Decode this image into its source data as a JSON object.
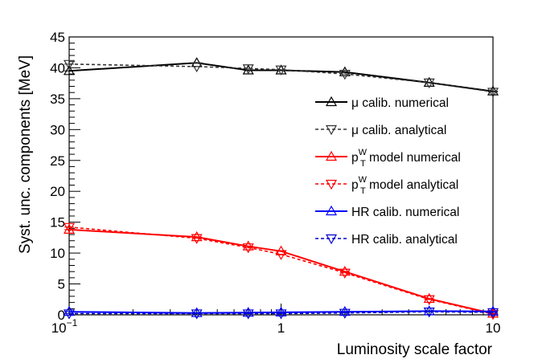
{
  "chart_data": {
    "type": "line",
    "xlabel": "Luminosity scale factor",
    "ylabel": "Syst. unc. components [MeV]",
    "xscale": "log",
    "xlim": [
      0.1,
      10
    ],
    "ylim": [
      0,
      45
    ],
    "grid": false,
    "legend_position": "right",
    "x_tick_labels": [
      {
        "value": 0.1,
        "label": "10",
        "exp": "−1"
      },
      {
        "value": 1,
        "label": "1",
        "exp": ""
      },
      {
        "value": 10,
        "label": "10",
        "exp": ""
      }
    ],
    "y_ticks": [
      0,
      5,
      10,
      15,
      20,
      25,
      30,
      35,
      40,
      45
    ],
    "x": [
      0.1,
      0.4,
      0.7,
      1.0,
      2.0,
      5.0,
      10.0
    ],
    "series": [
      {
        "name": "μ calib. numerical",
        "label_main": "μ calib. numerical",
        "label_sup": "",
        "label_sub": "",
        "label_rest": "",
        "color": "#000000",
        "dash": "solid",
        "marker": "triangle-up",
        "values": [
          39.5,
          40.8,
          39.6,
          39.6,
          39.3,
          37.6,
          36.2
        ]
      },
      {
        "name": "μ calib. analytical",
        "label_main": "μ calib. analytical",
        "label_sup": "",
        "label_sub": "",
        "label_rest": "",
        "color": "#333333",
        "dash": "dashed",
        "marker": "triangle-down",
        "values": [
          40.6,
          40.2,
          39.9,
          39.7,
          39.0,
          37.6,
          36.1
        ]
      },
      {
        "name": "p_T^W model numerical",
        "label_main": "p",
        "label_sup": "W",
        "label_sub": "T",
        "label_rest": " model numerical",
        "color": "#ff0000",
        "dash": "solid",
        "marker": "triangle-up",
        "values": [
          13.8,
          12.6,
          11.1,
          10.3,
          7.0,
          2.6,
          0.2
        ]
      },
      {
        "name": "p_T^W model analytical",
        "label_main": "p",
        "label_sup": "W",
        "label_sub": "T",
        "label_rest": " model analytical",
        "color": "#ff0000",
        "dash": "dashed",
        "marker": "triangle-down",
        "values": [
          14.2,
          12.4,
          10.9,
          9.8,
          6.8,
          2.5,
          0.1
        ]
      },
      {
        "name": "HR calib. numerical",
        "label_main": "HR calib. numerical",
        "label_sup": "",
        "label_sub": "",
        "label_rest": "",
        "color": "#0000ff",
        "dash": "solid",
        "marker": "triangle-up",
        "values": [
          0.5,
          0.3,
          0.35,
          0.4,
          0.5,
          0.6,
          0.55
        ]
      },
      {
        "name": "HR calib. analytical",
        "label_main": "HR calib. analytical",
        "label_sup": "",
        "label_sub": "",
        "label_rest": "",
        "color": "#0000cc",
        "dash": "dashed",
        "marker": "triangle-down",
        "values": [
          0.2,
          0.2,
          0.2,
          0.2,
          0.3,
          0.5,
          0.4
        ]
      }
    ]
  }
}
